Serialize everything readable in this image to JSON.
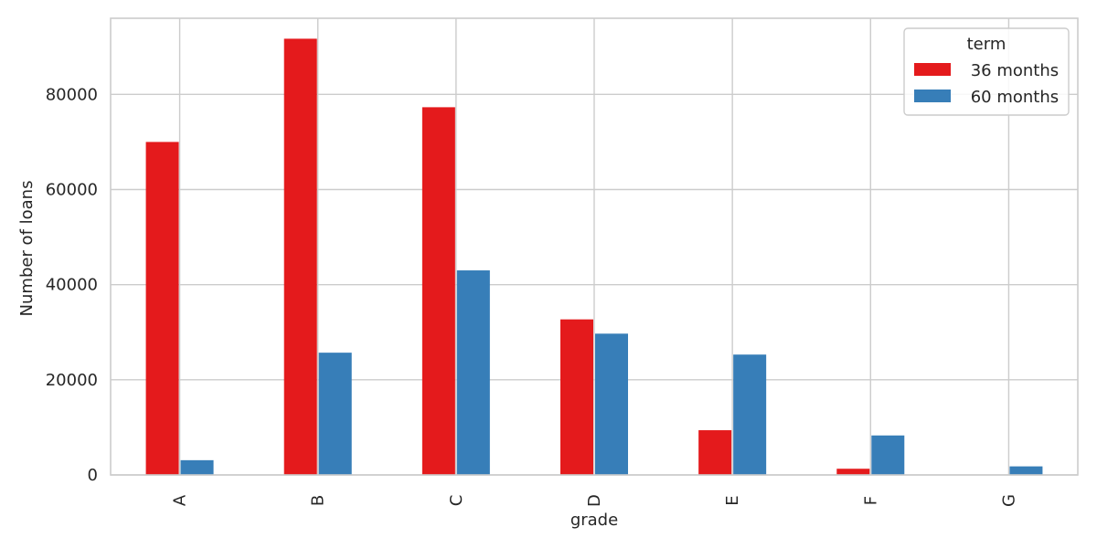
{
  "chart_data": {
    "type": "bar",
    "title": "",
    "xlabel": "grade",
    "ylabel": "Number of loans",
    "categories": [
      "A",
      "B",
      "C",
      "D",
      "E",
      "F",
      "G"
    ],
    "series": [
      {
        "name": " 36 months",
        "color": "#e41a1c",
        "values": [
          70000,
          91700,
          77300,
          32700,
          9400,
          1300,
          0
        ]
      },
      {
        "name": " 60 months",
        "color": "#377eb8",
        "values": [
          3100,
          25700,
          43000,
          29700,
          25300,
          8300,
          1800
        ]
      }
    ],
    "ylim": [
      0,
      96000
    ],
    "yticks": [
      0,
      20000,
      40000,
      60000,
      80000
    ],
    "ytick_labels": [
      "0",
      "20000",
      "40000",
      "60000",
      "80000"
    ],
    "grid": true,
    "legend": {
      "title": "term",
      "position": "top-right"
    }
  }
}
